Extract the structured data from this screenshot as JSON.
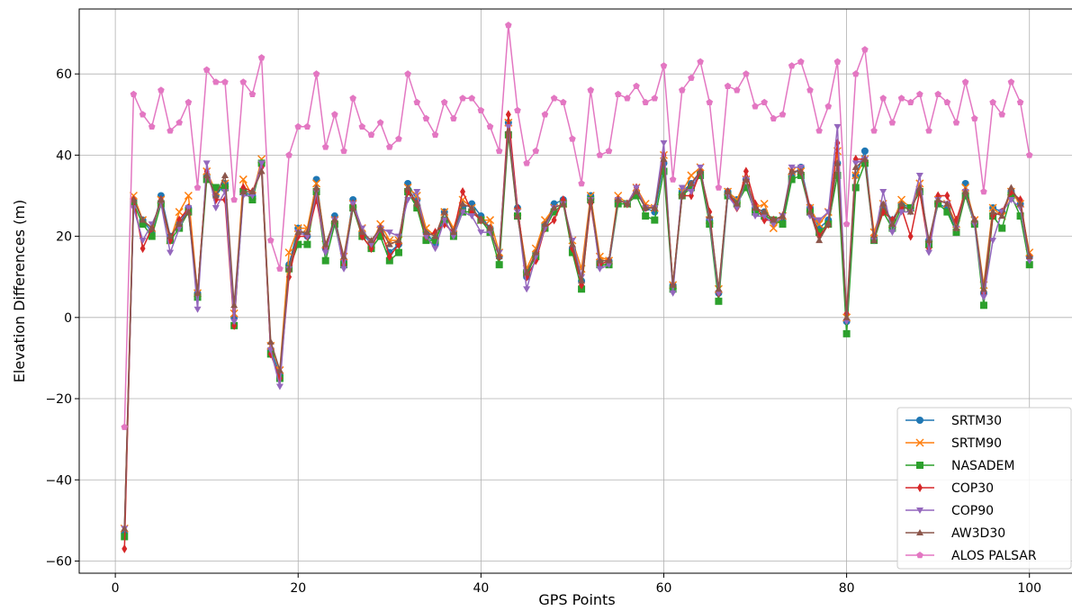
{
  "chart_data": {
    "type": "line",
    "xlabel": "GPS Points",
    "ylabel": "Elevation Differences (m)",
    "xlim": [
      -3.95,
      104.95
    ],
    "ylim": [
      -63,
      76
    ],
    "x_ticks": [
      0,
      20,
      40,
      60,
      80,
      100
    ],
    "y_ticks": [
      -60,
      -40,
      -20,
      0,
      20,
      40,
      60
    ],
    "grid": true,
    "legend_position": "lower-right",
    "x": [
      1,
      2,
      3,
      4,
      5,
      6,
      7,
      8,
      9,
      10,
      11,
      12,
      13,
      14,
      15,
      16,
      17,
      18,
      19,
      20,
      21,
      22,
      23,
      24,
      25,
      26,
      27,
      28,
      29,
      30,
      31,
      32,
      33,
      34,
      35,
      36,
      37,
      38,
      39,
      40,
      41,
      42,
      43,
      44,
      45,
      46,
      47,
      48,
      49,
      50,
      51,
      52,
      53,
      54,
      55,
      56,
      57,
      58,
      59,
      60,
      61,
      62,
      63,
      64,
      65,
      66,
      67,
      68,
      69,
      70,
      71,
      72,
      73,
      74,
      75,
      76,
      77,
      78,
      79,
      80,
      81,
      82,
      83,
      84,
      85,
      86,
      87,
      88,
      89,
      90,
      91,
      92,
      93,
      94,
      95,
      96,
      97,
      98,
      99,
      100
    ],
    "series": [
      {
        "name": "SRTM30",
        "color": "#1f77b4",
        "marker": "circle",
        "values": [
          -53,
          29,
          24,
          21,
          30,
          20,
          23,
          27,
          6,
          35,
          30,
          33,
          0,
          31,
          30,
          38,
          -8,
          -14,
          13,
          22,
          20,
          34,
          17,
          25,
          14,
          29,
          21,
          18,
          21,
          16,
          18,
          33,
          29,
          21,
          18,
          26,
          21,
          27,
          28,
          25,
          22,
          15,
          48,
          27,
          10,
          16,
          23,
          28,
          29,
          17,
          9,
          30,
          14,
          14,
          29,
          28,
          31,
          27,
          26,
          38,
          8,
          31,
          33,
          36,
          24,
          6,
          31,
          29,
          34,
          27,
          26,
          24,
          24,
          35,
          37,
          27,
          22,
          24,
          38,
          -1,
          35,
          41,
          19,
          27,
          24,
          28,
          27,
          31,
          19,
          28,
          27,
          21,
          33,
          23,
          6,
          27,
          26,
          31,
          28,
          15
        ]
      },
      {
        "name": "SRTM90",
        "color": "#ff7f0e",
        "marker": "x",
        "values": [
          -52,
          30,
          24,
          22,
          29,
          19,
          26,
          30,
          6,
          36,
          31,
          33,
          1,
          34,
          30,
          39,
          -7,
          -13,
          16,
          22,
          22,
          33,
          18,
          24,
          15,
          28,
          22,
          18,
          23,
          19,
          19,
          32,
          30,
          22,
          20,
          26,
          22,
          29,
          27,
          24,
          24,
          16,
          48,
          26,
          12,
          17,
          24,
          27,
          28,
          19,
          12,
          30,
          15,
          14,
          30,
          28,
          32,
          28,
          27,
          40,
          8,
          31,
          35,
          37,
          24,
          7,
          31,
          29,
          34,
          27,
          28,
          22,
          25,
          36,
          36,
          27,
          23,
          26,
          41,
          0,
          35,
          39,
          21,
          28,
          23,
          29,
          27,
          33,
          18,
          29,
          28,
          23,
          32,
          24,
          8,
          27,
          25,
          31,
          28,
          16
        ]
      },
      {
        "name": "NASADEM",
        "color": "#2ca02c",
        "marker": "square",
        "values": [
          -54,
          28,
          23,
          20,
          28,
          19,
          22,
          26,
          5,
          34,
          32,
          32,
          -2,
          31,
          29,
          38,
          -9,
          -15,
          12,
          18,
          18,
          31,
          14,
          23,
          13,
          27,
          20,
          17,
          20,
          14,
          16,
          31,
          27,
          19,
          19,
          24,
          20,
          26,
          26,
          24,
          21,
          13,
          45,
          25,
          11,
          15,
          22,
          26,
          28,
          16,
          7,
          29,
          13,
          13,
          28,
          28,
          30,
          25,
          24,
          36,
          7,
          30,
          32,
          35,
          23,
          4,
          30,
          28,
          32,
          26,
          25,
          24,
          23,
          34,
          35,
          26,
          21,
          23,
          35,
          -4,
          32,
          38,
          19,
          26,
          22,
          27,
          27,
          31,
          18,
          28,
          26,
          21,
          30,
          23,
          3,
          25,
          22,
          30,
          25,
          13
        ]
      },
      {
        "name": "COP30",
        "color": "#d62728",
        "marker": "diamond",
        "values": [
          -57,
          29,
          17,
          22,
          29,
          19,
          24,
          27,
          6,
          36,
          29,
          29,
          -2,
          32,
          31,
          37,
          -9,
          -15,
          10,
          20,
          20,
          29,
          17,
          24,
          13,
          28,
          20,
          17,
          22,
          15,
          18,
          31,
          28,
          20,
          21,
          23,
          21,
          31,
          26,
          24,
          22,
          15,
          50,
          27,
          10,
          14,
          22,
          24,
          29,
          17,
          8,
          28,
          13,
          14,
          29,
          28,
          32,
          27,
          27,
          40,
          8,
          30,
          30,
          36,
          26,
          6,
          31,
          27,
          36,
          28,
          24,
          24,
          25,
          36,
          36,
          27,
          20,
          23,
          43,
          1,
          39,
          39,
          20,
          26,
          24,
          27,
          20,
          31,
          17,
          30,
          30,
          24,
          31,
          24,
          6,
          25,
          26,
          31,
          29,
          15
        ]
      },
      {
        "name": "COP90",
        "color": "#9467bd",
        "marker": "triangle-down",
        "values": [
          -52,
          27,
          19,
          23,
          28,
          16,
          22,
          27,
          2,
          38,
          27,
          31,
          -1,
          30,
          30,
          38,
          -8,
          -17,
          12,
          21,
          20,
          31,
          16,
          24,
          12,
          28,
          22,
          18,
          22,
          21,
          20,
          29,
          31,
          20,
          17,
          24,
          20,
          26,
          25,
          21,
          21,
          16,
          47,
          26,
          7,
          15,
          22,
          27,
          28,
          19,
          10,
          29,
          12,
          13,
          29,
          28,
          32,
          27,
          27,
          43,
          6,
          32,
          31,
          37,
          24,
          6,
          30,
          27,
          34,
          25,
          25,
          23,
          25,
          37,
          37,
          25,
          24,
          26,
          47,
          -1,
          38,
          39,
          19,
          31,
          21,
          26,
          26,
          35,
          16,
          29,
          28,
          22,
          31,
          23,
          5,
          19,
          26,
          29,
          27,
          14
        ]
      },
      {
        "name": "AW3D30",
        "color": "#8c564b",
        "marker": "triangle-up",
        "values": [
          -52,
          29,
          24,
          22,
          29,
          20,
          23,
          26,
          6,
          35,
          30,
          35,
          3,
          31,
          31,
          36,
          -6,
          -13,
          12,
          21,
          21,
          32,
          18,
          24,
          15,
          27,
          21,
          19,
          22,
          18,
          19,
          32,
          28,
          21,
          20,
          26,
          21,
          28,
          27,
          24,
          22,
          15,
          46,
          25,
          11,
          16,
          23,
          27,
          28,
          18,
          9,
          29,
          14,
          14,
          29,
          28,
          31,
          27,
          27,
          39,
          8,
          30,
          33,
          36,
          25,
          7,
          31,
          28,
          34,
          27,
          26,
          24,
          25,
          36,
          36,
          26,
          19,
          23,
          38,
          0,
          37,
          39,
          19,
          28,
          23,
          28,
          26,
          32,
          19,
          29,
          28,
          22,
          31,
          24,
          7,
          26,
          25,
          32,
          28,
          15
        ]
      },
      {
        "name": "ALOS PALSAR",
        "color": "#e377c2",
        "marker": "pentagon",
        "values": [
          -27,
          55,
          50,
          47,
          56,
          46,
          48,
          53,
          32,
          61,
          58,
          58,
          29,
          58,
          55,
          64,
          19,
          12,
          40,
          47,
          47,
          60,
          42,
          50,
          41,
          54,
          47,
          45,
          48,
          42,
          44,
          60,
          53,
          49,
          45,
          53,
          49,
          54,
          54,
          51,
          47,
          41,
          72,
          51,
          38,
          41,
          50,
          54,
          53,
          44,
          33,
          56,
          40,
          41,
          55,
          54,
          57,
          53,
          54,
          62,
          34,
          56,
          59,
          63,
          53,
          32,
          57,
          56,
          60,
          52,
          53,
          49,
          50,
          62,
          63,
          56,
          46,
          52,
          63,
          23,
          60,
          66,
          46,
          54,
          48,
          54,
          53,
          55,
          46,
          55,
          53,
          48,
          58,
          49,
          31,
          53,
          50,
          58,
          53,
          40
        ]
      }
    ]
  }
}
